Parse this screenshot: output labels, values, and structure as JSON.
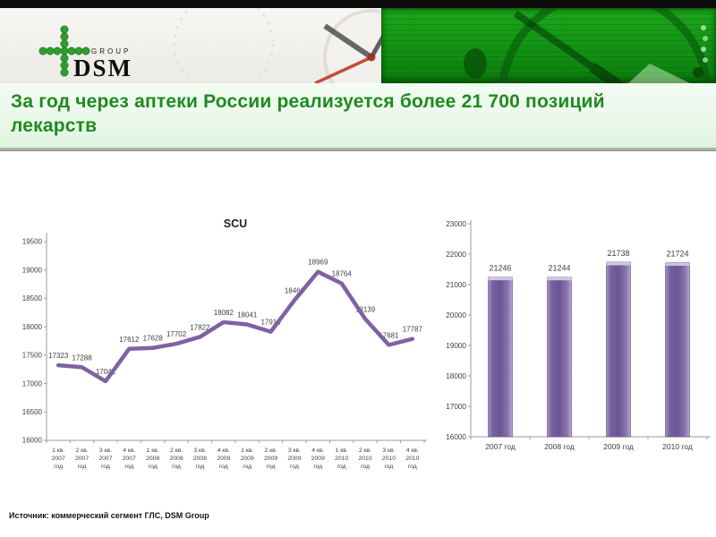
{
  "header": {
    "logo": {
      "group": "GROUP",
      "name": "DSM"
    }
  },
  "title": {
    "text": "За год через аптеки России реализуется более 21 700 позиций лекарств"
  },
  "footer": {
    "source": "Источник: коммерческий сегмент ГЛС, DSM Group"
  },
  "colors": {
    "title_green": "#1f8a1f",
    "header_green": "#139113",
    "accent_purple": "#7E62A1",
    "data_label_gray": "#3f3f3f",
    "axis_gray": "#9b9b9b"
  },
  "chart_data": [
    {
      "type": "line",
      "title": "SCU",
      "x_labels": [
        [
          "1 кв.",
          "2007",
          "год"
        ],
        [
          "2 кв.",
          "2007",
          "год"
        ],
        [
          "3 кв.",
          "2007",
          "год"
        ],
        [
          "4 кв.",
          "2007",
          "год"
        ],
        [
          "1 кв.",
          "2008",
          "год"
        ],
        [
          "2 кв.",
          "2008",
          "год"
        ],
        [
          "3 кв.",
          "2008",
          "год"
        ],
        [
          "4 кв.",
          "2008",
          "год"
        ],
        [
          "1 кв.",
          "2009",
          "год"
        ],
        [
          "2 кв.",
          "2009",
          "год"
        ],
        [
          "3 кв.",
          "2009",
          "год"
        ],
        [
          "4 кв.",
          "2009",
          "год"
        ],
        [
          "1 кв.",
          "2010",
          "год"
        ],
        [
          "2 кв.",
          "2010",
          "год"
        ],
        [
          "3 кв.",
          "2010",
          "год"
        ],
        [
          "4 кв.",
          "2010",
          "год"
        ]
      ],
      "values": [
        17323,
        17288,
        17041,
        17612,
        17628,
        17702,
        17822,
        18082,
        18041,
        17913,
        18466,
        18969,
        18764,
        18139,
        17681,
        17787
      ],
      "ylim": [
        16000,
        19500
      ],
      "ytick_step": 500,
      "grid": false,
      "legend": "none",
      "line_color": "#7E62A1"
    },
    {
      "type": "bar",
      "categories": [
        "2007 год",
        "2008 год",
        "2009 год",
        "2010 год"
      ],
      "values": [
        21246,
        21244,
        21738,
        21724
      ],
      "ylim": [
        16000,
        23000
      ],
      "ytick_step": 1000,
      "grid": false,
      "legend": "none",
      "bar_color": "#7E62A1"
    }
  ]
}
